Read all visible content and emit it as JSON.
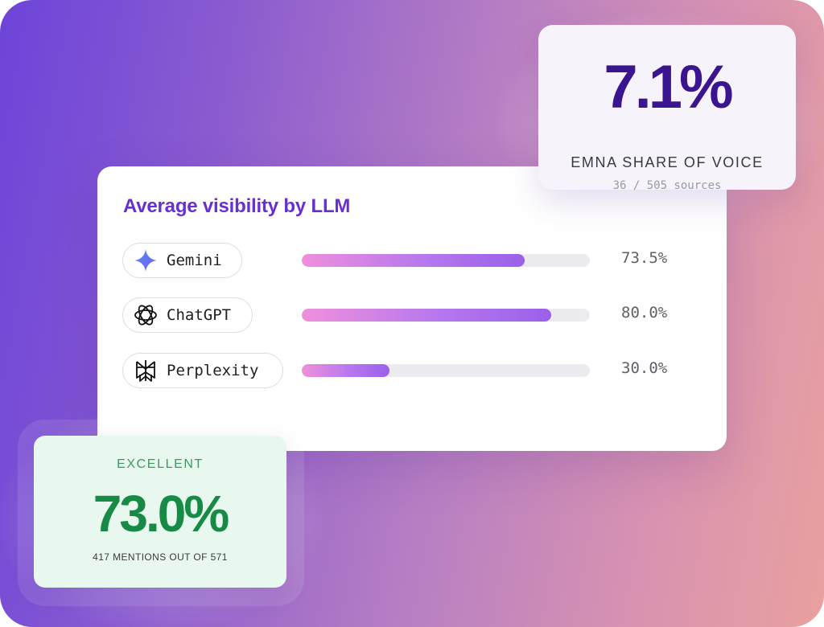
{
  "main_card": {
    "title": "Average visibility by LLM",
    "rows": [
      {
        "icon": "gemini-icon",
        "label": "Gemini",
        "value_text": "73.5%",
        "fill_fraction": 0.775
      },
      {
        "icon": "chatgpt-icon",
        "label": "ChatGPT",
        "value_text": "80.0%",
        "fill_fraction": 0.865
      },
      {
        "icon": "perplexity-icon",
        "label": "Perplexity",
        "value_text": "30.0%",
        "fill_fraction": 0.305
      }
    ]
  },
  "share_of_voice": {
    "value": "7.1%",
    "label": "EMNA SHARE OF VOICE",
    "sub": "36 / 505 sources"
  },
  "excellent": {
    "label": "EXCELLENT",
    "value": "73.0%",
    "sub": "417 MENTIONS OUT OF 571"
  },
  "colors": {
    "accent_purple": "#6a2fd0",
    "sov_value": "#3b1590",
    "excellent_green": "#178a46",
    "bar_gradient_start": "#ef8fdc",
    "bar_gradient_end": "#9a60ea"
  }
}
